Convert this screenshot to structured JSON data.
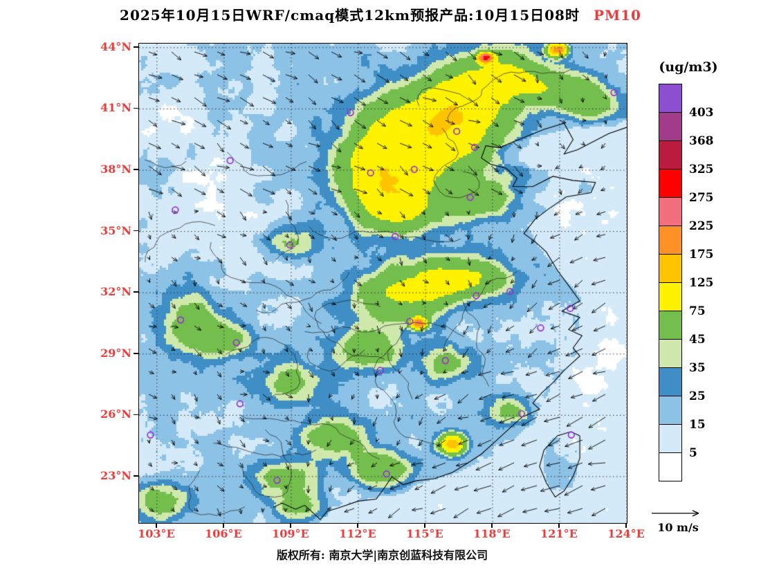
{
  "title": {
    "main": "2025年10月15日WRF/cmaq模式12km预报产品:10月15日08时",
    "pollutant": "PM10"
  },
  "legend": {
    "title": "(ug/m3)"
  },
  "wind": {
    "ref_label": "10 m/s"
  },
  "footer": {
    "copyright": "版权所有: 南京大学|南京创蓝科技有限公司"
  },
  "colors": {
    "accent_red": "#EF3B39",
    "text": "#000000",
    "marker": "#9B30D0"
  },
  "axes": {
    "lat_ticks": [
      {
        "v": 44,
        "label": "44°N"
      },
      {
        "v": 41,
        "label": "41°N"
      },
      {
        "v": 38,
        "label": "38°N"
      },
      {
        "v": 35,
        "label": "35°N"
      },
      {
        "v": 32,
        "label": "32°N"
      },
      {
        "v": 29,
        "label": "29°N"
      },
      {
        "v": 26,
        "label": "26°N"
      },
      {
        "v": 23,
        "label": "23°N"
      }
    ],
    "lon_ticks": [
      {
        "v": 103,
        "label": "103°E"
      },
      {
        "v": 106,
        "label": "106°E"
      },
      {
        "v": 109,
        "label": "109°E"
      },
      {
        "v": 112,
        "label": "112°E"
      },
      {
        "v": 115,
        "label": "115°E"
      },
      {
        "v": 118,
        "label": "118°E"
      },
      {
        "v": 121,
        "label": "121°E"
      },
      {
        "v": 124,
        "label": "124°E"
      }
    ]
  },
  "chart_data": {
    "type": "heatmap",
    "units": "ug/m3",
    "lon_range": [
      102.2,
      124.0
    ],
    "lat_range": [
      20.73,
      44.2
    ],
    "grid_step_deg": 3,
    "levels": [
      5,
      15,
      25,
      35,
      45,
      75,
      125,
      175,
      225,
      275,
      325,
      368,
      403
    ],
    "band_colors_low_to_high": [
      "#FFFFFF",
      "#D4EAF8",
      "#8CC2E6",
      "#3F8FC6",
      "#CFE8AC",
      "#74BE4E",
      "#FFF200",
      "#FFC400",
      "#FF9126",
      "#F2707E",
      "#FF0000",
      "#BC1B40",
      "#A23B8A",
      "#8C4FD0"
    ],
    "hotspots": [
      [
        114.8,
        39.6,
        85,
        2.8,
        2.3
      ],
      [
        116.8,
        41.2,
        75,
        1.9,
        1.7
      ],
      [
        112.9,
        37.6,
        70,
        1.7,
        1.9
      ],
      [
        114.0,
        36.3,
        60,
        1.6,
        1.2
      ],
      [
        117.5,
        36.6,
        45,
        1.6,
        1.0
      ],
      [
        118.5,
        42.8,
        55,
        1.6,
        1.1
      ],
      [
        120.6,
        42.0,
        50,
        1.6,
        1.0
      ],
      [
        122.5,
        41.3,
        45,
        1.3,
        0.9
      ],
      [
        117.7,
        43.5,
        280,
        0.3,
        0.22
      ],
      [
        120.9,
        43.9,
        200,
        0.4,
        0.3
      ],
      [
        109.0,
        34.4,
        40,
        1.5,
        0.8
      ],
      [
        113.9,
        31.9,
        55,
        2.0,
        1.4
      ],
      [
        115.8,
        32.6,
        50,
        1.6,
        1.1
      ],
      [
        117.6,
        32.8,
        45,
        1.3,
        1.0
      ],
      [
        114.7,
        30.5,
        210,
        0.32,
        0.26
      ],
      [
        112.3,
        29.2,
        45,
        1.6,
        1.0
      ],
      [
        116.0,
        28.6,
        40,
        1.2,
        0.9
      ],
      [
        104.7,
        30.4,
        55,
        1.1,
        1.5
      ],
      [
        106.3,
        29.7,
        40,
        1.0,
        0.8
      ],
      [
        108.8,
        27.6,
        35,
        1.5,
        1.0
      ],
      [
        110.8,
        24.9,
        45,
        1.5,
        1.0
      ],
      [
        113.1,
        23.4,
        50,
        1.4,
        0.9
      ],
      [
        116.2,
        24.6,
        130,
        0.55,
        0.45
      ],
      [
        108.8,
        22.9,
        40,
        1.3,
        0.8
      ],
      [
        103.2,
        21.9,
        45,
        1.2,
        0.9
      ],
      [
        109.2,
        21.6,
        40,
        1.0,
        0.7
      ],
      [
        118.8,
        26.2,
        35,
        0.9,
        0.7
      ],
      [
        105.3,
        36.2,
        -11,
        2.6,
        2.0
      ],
      [
        103.6,
        40.8,
        -9,
        2.6,
        2.2
      ],
      [
        107.6,
        34.2,
        -8,
        2.6,
        1.1
      ],
      [
        103.4,
        23.6,
        -9,
        1.6,
        1.4
      ],
      [
        121.5,
        36.0,
        -5,
        2.0,
        1.6
      ],
      [
        123.0,
        28.5,
        -5,
        1.6,
        2.2
      ]
    ],
    "city_markers": [
      [
        116.4,
        39.9
      ],
      [
        117.2,
        39.12
      ],
      [
        114.5,
        38.04
      ],
      [
        112.55,
        37.87
      ],
      [
        111.65,
        40.82
      ],
      [
        123.43,
        41.8
      ],
      [
        106.27,
        38.47
      ],
      [
        103.82,
        36.06
      ],
      [
        108.94,
        34.34
      ],
      [
        113.65,
        34.76
      ],
      [
        117.0,
        36.67
      ],
      [
        118.78,
        32.06
      ],
      [
        117.27,
        31.86
      ],
      [
        121.47,
        31.23
      ],
      [
        120.15,
        30.28
      ],
      [
        114.3,
        30.6
      ],
      [
        115.89,
        28.68
      ],
      [
        112.98,
        28.2
      ],
      [
        106.55,
        29.56
      ],
      [
        104.06,
        30.67
      ],
      [
        106.71,
        26.57
      ],
      [
        102.71,
        25.04
      ],
      [
        108.37,
        22.82
      ],
      [
        113.26,
        23.13
      ],
      [
        119.3,
        26.08
      ],
      [
        121.52,
        25.04
      ]
    ],
    "coastline": [
      [
        124.0,
        40.1
      ],
      [
        123.2,
        39.8
      ],
      [
        122.5,
        39.4
      ],
      [
        121.8,
        39.0
      ],
      [
        121.2,
        38.8
      ],
      [
        121.6,
        39.5
      ],
      [
        121.2,
        40.3
      ],
      [
        120.3,
        40.0
      ],
      [
        119.4,
        39.6
      ],
      [
        118.3,
        39.1
      ],
      [
        117.7,
        39.2
      ],
      [
        117.5,
        38.6
      ],
      [
        117.9,
        38.3
      ],
      [
        118.6,
        38.1
      ],
      [
        119.1,
        37.6
      ],
      [
        118.9,
        37.2
      ],
      [
        119.8,
        37.2
      ],
      [
        120.7,
        37.7
      ],
      [
        121.6,
        37.5
      ],
      [
        122.6,
        37.4
      ],
      [
        122.4,
        36.9
      ],
      [
        121.3,
        36.7
      ],
      [
        120.5,
        36.1
      ],
      [
        119.9,
        35.6
      ],
      [
        119.4,
        34.9
      ],
      [
        119.9,
        34.5
      ],
      [
        120.4,
        34.0
      ],
      [
        120.9,
        33.1
      ],
      [
        121.5,
        32.2
      ],
      [
        121.9,
        31.6
      ],
      [
        121.1,
        31.1
      ],
      [
        121.9,
        30.8
      ],
      [
        121.4,
        30.2
      ],
      [
        122.0,
        29.9
      ],
      [
        121.6,
        29.3
      ],
      [
        121.9,
        28.9
      ],
      [
        121.2,
        28.2
      ],
      [
        120.7,
        27.6
      ],
      [
        120.2,
        27.1
      ],
      [
        119.8,
        26.6
      ],
      [
        120.1,
        26.3
      ],
      [
        119.3,
        25.9
      ],
      [
        118.9,
        25.5
      ],
      [
        118.2,
        24.8
      ],
      [
        117.5,
        24.1
      ],
      [
        116.8,
        23.6
      ],
      [
        116.2,
        23.2
      ],
      [
        115.4,
        22.9
      ],
      [
        114.6,
        22.8
      ],
      [
        114.0,
        22.6
      ],
      [
        113.5,
        23.0
      ],
      [
        113.2,
        22.5
      ],
      [
        112.8,
        21.9
      ],
      [
        112.0,
        21.8
      ],
      [
        111.2,
        21.5
      ],
      [
        110.6,
        21.3
      ],
      [
        110.3,
        20.9
      ],
      [
        109.9,
        21.3
      ],
      [
        109.6,
        21.6
      ],
      [
        109.2,
        21.4
      ],
      [
        108.6,
        21.7
      ],
      [
        108.2,
        21.5
      ]
    ],
    "taiwan": [
      [
        121.9,
        25.0
      ],
      [
        121.5,
        25.2
      ],
      [
        120.9,
        25.0
      ],
      [
        120.3,
        24.3
      ],
      [
        120.1,
        23.5
      ],
      [
        120.4,
        22.7
      ],
      [
        120.8,
        22.0
      ],
      [
        121.2,
        22.3
      ],
      [
        121.6,
        23.0
      ],
      [
        121.9,
        23.9
      ],
      [
        121.9,
        25.0
      ]
    ],
    "coast_lon_by_lat": [
      [
        20.7,
        110.2
      ],
      [
        21.5,
        110.8
      ],
      [
        22.0,
        112.8
      ],
      [
        22.7,
        114.8
      ],
      [
        23.2,
        116.4
      ],
      [
        24.0,
        117.9
      ],
      [
        25.0,
        119.1
      ],
      [
        26.0,
        119.9
      ],
      [
        27.0,
        120.4
      ],
      [
        28.0,
        121.0
      ],
      [
        29.0,
        121.7
      ],
      [
        30.0,
        121.9
      ],
      [
        31.0,
        121.8
      ],
      [
        31.8,
        121.9
      ],
      [
        33.0,
        120.9
      ],
      [
        34.3,
        120.0
      ],
      [
        35.3,
        119.5
      ],
      [
        36.0,
        120.3
      ],
      [
        37.0,
        122.4
      ],
      [
        37.6,
        122.5
      ],
      [
        38.3,
        118.5
      ],
      [
        39.1,
        118.0
      ],
      [
        39.6,
        119.8
      ],
      [
        40.1,
        121.6
      ],
      [
        40.6,
        124.0
      ],
      [
        44.2,
        124.0
      ]
    ]
  }
}
